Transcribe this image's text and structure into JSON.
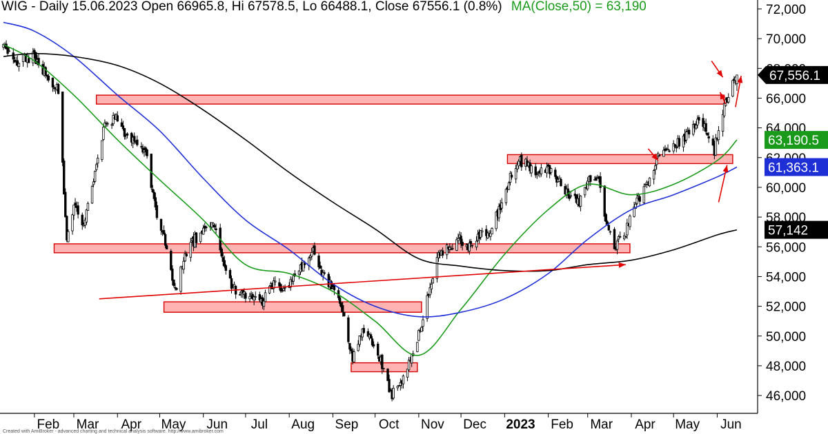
{
  "header": {
    "ticker_line": "WIG - Daily 15.06.2023 Open 66965.8, Hi 67578.5, Lo 66488.1, Close 67556.1 (0.8%)",
    "ma_line": "MA(Close,50) = 63,190"
  },
  "credit": "Created with AmiBroker - advanced charting and technical analysis software. http://www.amibroker.com",
  "colors": {
    "candle": "#000000",
    "ma50": "#1a9a1a",
    "ma100": "#1f2fd6",
    "ma200": "#000000",
    "zone_fill": "#ffb3b3",
    "zone_stroke": "#d40000",
    "arrow": "#e00000",
    "grid": "#000000"
  },
  "chart_data": {
    "type": "candlestick",
    "x_axis": {
      "months": [
        "Feb",
        "Mar",
        "Apr",
        "May",
        "Jun",
        "Jul",
        "Aug",
        "Sep",
        "Oct",
        "Nov",
        "Dec",
        "2023",
        "Feb",
        "Mar",
        "Apr",
        "May",
        "Jun"
      ],
      "month_start_dates": [
        "2022-02-01",
        "2022-03-01",
        "2022-04-01",
        "2022-05-01",
        "2022-06-01",
        "2022-07-01",
        "2022-08-01",
        "2022-09-01",
        "2022-10-01",
        "2022-11-01",
        "2022-12-01",
        "2023-01-01",
        "2023-02-01",
        "2023-03-01",
        "2023-04-01",
        "2023-05-01",
        "2023-06-01"
      ],
      "start": "2022-01-10",
      "end": "2023-06-15"
    },
    "y_axis": {
      "ylim": [
        44800,
        72600
      ],
      "ticks": [
        46000,
        48000,
        50000,
        52000,
        54000,
        56000,
        58000,
        60000,
        62000,
        64000,
        66000,
        68000,
        70000,
        72000
      ],
      "tick_labels": [
        "46,000",
        "48,000",
        "50,000",
        "52,000",
        "54,000",
        "56,000",
        "58,000",
        "60,000",
        "62,000",
        "64,000",
        "66,000",
        "68,000",
        "70,000",
        "72,000"
      ]
    },
    "price_anchors": [
      [
        "2022-01-10",
        69500
      ],
      [
        "2022-01-20",
        68500
      ],
      [
        "2022-02-01",
        68800
      ],
      [
        "2022-02-10",
        67500
      ],
      [
        "2022-02-18",
        66500
      ],
      [
        "2022-02-24",
        56500
      ],
      [
        "2022-03-01",
        59000
      ],
      [
        "2022-03-08",
        57500
      ],
      [
        "2022-03-15",
        60500
      ],
      [
        "2022-03-23",
        64300
      ],
      [
        "2022-04-01",
        64700
      ],
      [
        "2022-04-07",
        63500
      ],
      [
        "2022-04-14",
        63000
      ],
      [
        "2022-04-22",
        62000
      ],
      [
        "2022-04-28",
        58500
      ],
      [
        "2022-05-06",
        56000
      ],
      [
        "2022-05-12",
        53000
      ],
      [
        "2022-05-19",
        55500
      ],
      [
        "2022-05-26",
        56500
      ],
      [
        "2022-06-01",
        57000
      ],
      [
        "2022-06-08",
        57600
      ],
      [
        "2022-06-14",
        55500
      ],
      [
        "2022-06-21",
        53500
      ],
      [
        "2022-06-27",
        52800
      ],
      [
        "2022-07-05",
        52500
      ],
      [
        "2022-07-13",
        52300
      ],
      [
        "2022-07-20",
        53500
      ],
      [
        "2022-07-28",
        53000
      ],
      [
        "2022-08-05",
        54000
      ],
      [
        "2022-08-12",
        55000
      ],
      [
        "2022-08-18",
        55800
      ],
      [
        "2022-08-25",
        54000
      ],
      [
        "2022-09-01",
        53200
      ],
      [
        "2022-09-08",
        51500
      ],
      [
        "2022-09-15",
        48500
      ],
      [
        "2022-09-22",
        50500
      ],
      [
        "2022-09-30",
        49500
      ],
      [
        "2022-10-06",
        48000
      ],
      [
        "2022-10-13",
        46000
      ],
      [
        "2022-10-20",
        47000
      ],
      [
        "2022-10-27",
        48500
      ],
      [
        "2022-11-02",
        50500
      ],
      [
        "2022-11-08",
        53000
      ],
      [
        "2022-11-15",
        55500
      ],
      [
        "2022-11-22",
        56000
      ],
      [
        "2022-11-30",
        56500
      ],
      [
        "2022-12-07",
        56000
      ],
      [
        "2022-12-14",
        56800
      ],
      [
        "2022-12-21",
        57000
      ],
      [
        "2022-12-28",
        58500
      ],
      [
        "2023-01-04",
        60500
      ],
      [
        "2023-01-10",
        61800
      ],
      [
        "2023-01-18",
        61500
      ],
      [
        "2023-01-25",
        61000
      ],
      [
        "2023-02-01",
        61300
      ],
      [
        "2023-02-08",
        60500
      ],
      [
        "2023-02-16",
        59500
      ],
      [
        "2023-02-23",
        59000
      ],
      [
        "2023-03-02",
        60500
      ],
      [
        "2023-03-09",
        60800
      ],
      [
        "2023-03-14",
        57500
      ],
      [
        "2023-03-20",
        56000
      ],
      [
        "2023-03-28",
        57000
      ],
      [
        "2023-04-05",
        59000
      ],
      [
        "2023-04-13",
        60500
      ],
      [
        "2023-04-20",
        62000
      ],
      [
        "2023-04-27",
        62500
      ],
      [
        "2023-05-04",
        63000
      ],
      [
        "2023-05-11",
        63500
      ],
      [
        "2023-05-18",
        64500
      ],
      [
        "2023-05-24",
        64000
      ],
      [
        "2023-05-30",
        62500
      ],
      [
        "2023-06-02",
        64000
      ],
      [
        "2023-06-08",
        66000
      ],
      [
        "2023-06-15",
        67556
      ]
    ],
    "moving_averages": [
      {
        "name": "MA(Close,50)",
        "color": "#1a9a1a",
        "last_value": "63,190.5",
        "points": [
          [
            "2022-01-10",
            69600
          ],
          [
            "2022-02-01",
            68500
          ],
          [
            "2022-03-01",
            66200
          ],
          [
            "2022-04-01",
            63200
          ],
          [
            "2022-05-01",
            60500
          ],
          [
            "2022-06-01",
            57800
          ],
          [
            "2022-07-01",
            54800
          ],
          [
            "2022-08-01",
            54200
          ],
          [
            "2022-09-01",
            53000
          ],
          [
            "2022-10-01",
            51000
          ],
          [
            "2022-11-01",
            48700
          ],
          [
            "2022-12-01",
            51800
          ],
          [
            "2023-01-01",
            55500
          ],
          [
            "2023-02-01",
            58500
          ],
          [
            "2023-03-01",
            60200
          ],
          [
            "2023-04-01",
            59500
          ],
          [
            "2023-05-01",
            60200
          ],
          [
            "2023-06-01",
            61800
          ],
          [
            "2023-06-15",
            63190
          ]
        ]
      },
      {
        "name": "MA(Close,100)",
        "color": "#1f2fd6",
        "last_value": "61,363.1",
        "points": [
          [
            "2022-01-10",
            71100
          ],
          [
            "2022-02-01",
            70500
          ],
          [
            "2022-03-01",
            68800
          ],
          [
            "2022-04-01",
            66200
          ],
          [
            "2022-05-01",
            63800
          ],
          [
            "2022-06-01",
            60600
          ],
          [
            "2022-07-01",
            57800
          ],
          [
            "2022-08-01",
            55800
          ],
          [
            "2022-09-01",
            53500
          ],
          [
            "2022-10-01",
            52000
          ],
          [
            "2022-11-01",
            51300
          ],
          [
            "2022-12-01",
            51600
          ],
          [
            "2023-01-01",
            52500
          ],
          [
            "2023-02-01",
            54200
          ],
          [
            "2023-03-01",
            56500
          ],
          [
            "2023-04-01",
            58500
          ],
          [
            "2023-05-01",
            59500
          ],
          [
            "2023-06-01",
            60700
          ],
          [
            "2023-06-15",
            61363
          ]
        ]
      },
      {
        "name": "MA(Close,200)",
        "color": "#000000",
        "last_value": "57,142",
        "points": [
          [
            "2022-01-10",
            68800
          ],
          [
            "2022-02-01",
            69000
          ],
          [
            "2022-03-01",
            68800
          ],
          [
            "2022-04-01",
            68200
          ],
          [
            "2022-05-01",
            67000
          ],
          [
            "2022-06-01",
            65200
          ],
          [
            "2022-07-01",
            63200
          ],
          [
            "2022-08-01",
            61000
          ],
          [
            "2022-09-01",
            59000
          ],
          [
            "2022-10-01",
            57200
          ],
          [
            "2022-11-01",
            55200
          ],
          [
            "2022-12-01",
            54700
          ],
          [
            "2023-01-01",
            54400
          ],
          [
            "2023-02-01",
            54400
          ],
          [
            "2023-03-01",
            54800
          ],
          [
            "2023-04-01",
            55100
          ],
          [
            "2023-05-01",
            55800
          ],
          [
            "2023-06-01",
            56800
          ],
          [
            "2023-06-15",
            57142
          ]
        ]
      }
    ],
    "zones": [
      {
        "start": "2022-03-17",
        "end": "2023-06-06",
        "low": 65600,
        "high": 66200
      },
      {
        "start": "2023-01-03",
        "end": "2023-06-12",
        "low": 61600,
        "high": 62200
      },
      {
        "start": "2022-02-15",
        "end": "2023-03-31",
        "low": 55600,
        "high": 56200
      },
      {
        "start": "2022-05-04",
        "end": "2022-11-03",
        "low": 51600,
        "high": 52300
      },
      {
        "start": "2022-09-14",
        "end": "2022-10-31",
        "low": 47600,
        "high": 48200
      }
    ],
    "arrows": [
      {
        "from": [
          "2022-03-19",
          52500
        ],
        "to": [
          "2023-03-28",
          54800
        ]
      },
      {
        "from": [
          "2023-04-13",
          62600
        ],
        "to": [
          "2023-04-20",
          61800
        ]
      },
      {
        "from": [
          "2023-05-28",
          68500
        ],
        "to": [
          "2023-06-05",
          67400
        ]
      },
      {
        "from": [
          "2023-06-07",
          65600
        ],
        "to": [
          "2023-06-03",
          66400
        ]
      },
      {
        "from": [
          "2023-06-14",
          65400
        ],
        "to": [
          "2023-06-18",
          67500
        ]
      },
      {
        "from": [
          "2023-06-02",
          59000
        ],
        "to": [
          "2023-06-08",
          61500
        ]
      }
    ],
    "price_tags": [
      {
        "label": "67,556.1",
        "value": 67556,
        "bg": "#000000",
        "fg": "#ffffff",
        "arrow": true
      },
      {
        "label": "63,190.5",
        "value": 63190,
        "bg": "#1a9a1a",
        "fg": "#ffffff",
        "arrow": false
      },
      {
        "label": "61,363.1",
        "value": 61363,
        "bg": "#1f2fd6",
        "fg": "#ffffff",
        "arrow": false
      },
      {
        "label": "57,142",
        "value": 57142,
        "bg": "#000000",
        "fg": "#ffffff",
        "arrow": false
      }
    ]
  }
}
